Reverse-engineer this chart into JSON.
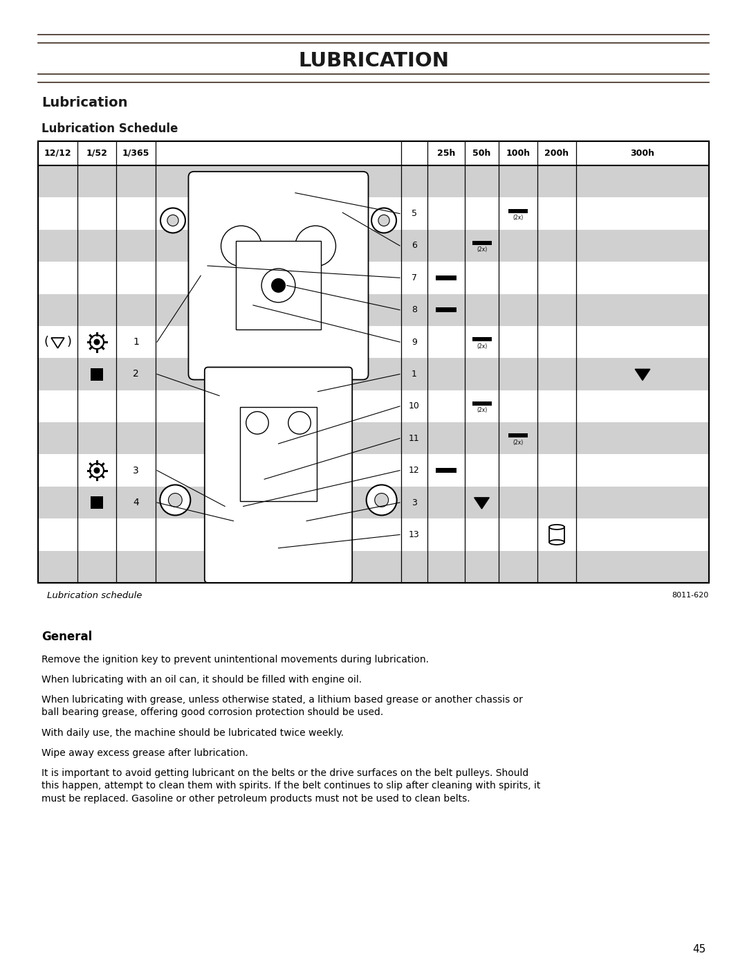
{
  "page_title": "LUBRICATION",
  "section_title": "Lubrication",
  "subsection_title": "Lubrication Schedule",
  "caption": "Lubrication schedule",
  "figure_number": "8011-620",
  "page_number": "45",
  "header_cols_left": [
    "12/12",
    "1/52",
    "1/365"
  ],
  "header_cols_right": [
    "25h",
    "50h",
    "100h",
    "200h",
    "300h"
  ],
  "general_title": "General",
  "paragraphs": [
    "Remove the ignition key to prevent unintentional movements during lubrication.",
    "When lubricating with an oil can, it should be filled with engine oil.",
    "When lubricating with grease, unless otherwise stated, a lithium based grease or another chassis or\nball bearing grease, offering good corrosion protection should be used.",
    "With daily use, the machine should be lubricated twice weekly.",
    "Wipe away excess grease after lubrication.",
    "It is important to avoid getting lubricant on the belts or the drive surfaces on the belt pulleys. Should\nthis happen, attempt to clean them with spirits. If the belt continues to slip after cleaning with spirits, it\nmust be replaced. Gasoline or other petroleum products must not be used to clean belts."
  ],
  "bg_color": "#ffffff",
  "text_color": "#1a1a1a",
  "title_line_color": "#3d2b1f",
  "gray_row_color": "#d0d0d0",
  "table_border_color": "#000000"
}
